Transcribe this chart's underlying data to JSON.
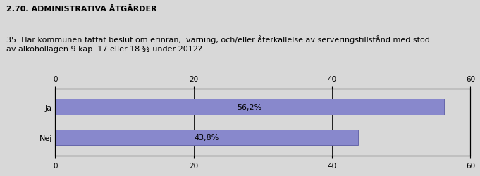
{
  "title": "2.70. ADMINISTRATIVA ÅTGÄRDER",
  "question": "35. Har kommunen fattat beslut om erinran,  varning, och/eller återkallelse av serveringstillstånd med stöd\nav alkohollagen 9 kap. 17 eller 18 §§ under 2012?",
  "categories": [
    "Ja",
    "Nej"
  ],
  "values": [
    56.2,
    43.8
  ],
  "labels": [
    "56,2%",
    "43,8%"
  ],
  "bar_color": "#8888cc",
  "bar_edge_color": "#6666aa",
  "xlim": [
    0,
    60
  ],
  "xticks": [
    0,
    20,
    40,
    60
  ],
  "background_color": "#d8d8d8",
  "plot_bg_color": "#d8d8d8",
  "title_fontsize": 8,
  "question_fontsize": 8,
  "tick_fontsize": 7.5,
  "label_fontsize": 8,
  "category_fontsize": 8
}
